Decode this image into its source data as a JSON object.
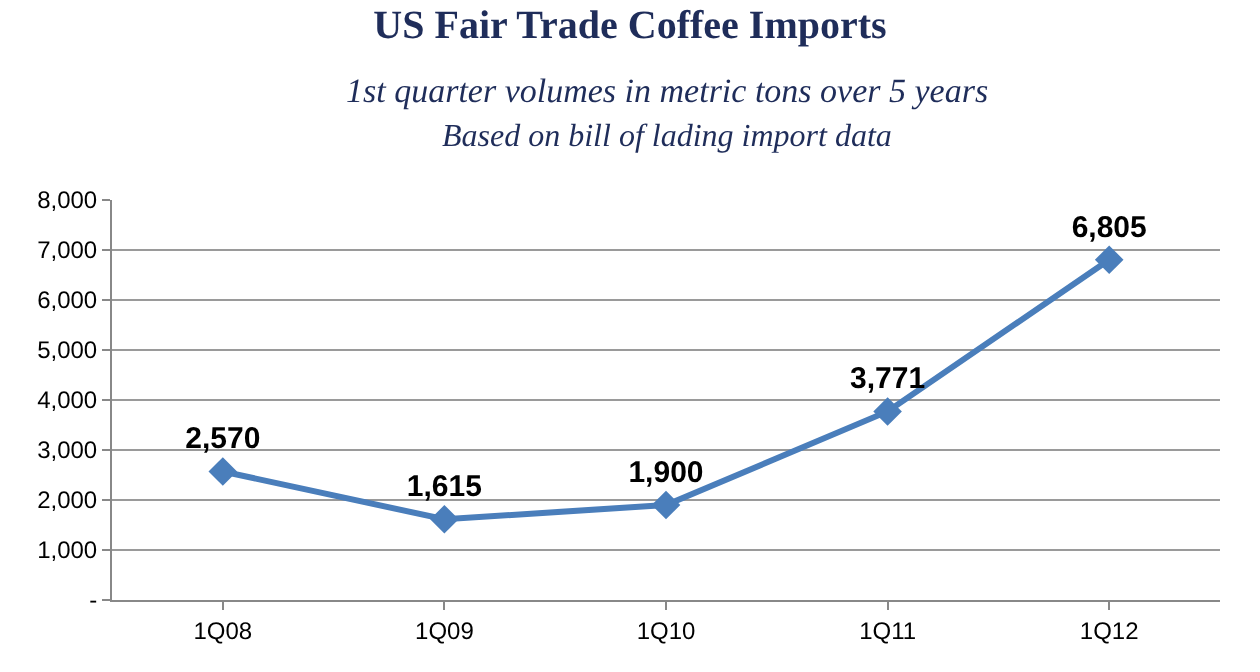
{
  "chart_data": {
    "type": "line",
    "title": "US Fair Trade Coffee Imports",
    "subtitle": "1st quarter volumes in metric tons over 5 years",
    "annotations": [
      "Based on bill of lading import data"
    ],
    "categories": [
      "1Q08",
      "1Q09",
      "1Q10",
      "1Q11",
      "1Q12"
    ],
    "series": [
      {
        "color": "#4a7ebb",
        "values": [
          2570,
          1615,
          1900,
          3771,
          6805
        ],
        "value_labels": [
          "2,570",
          "1,615",
          "1,900",
          "3,771",
          "6,805"
        ]
      }
    ],
    "ylim": [
      0,
      8000
    ],
    "yticks": [
      {
        "value": 0,
        "label": "-"
      },
      {
        "value": 1000,
        "label": "1,000"
      },
      {
        "value": 2000,
        "label": "2,000"
      },
      {
        "value": 3000,
        "label": "3,000"
      },
      {
        "value": 4000,
        "label": "4,000"
      },
      {
        "value": 5000,
        "label": "5,000"
      },
      {
        "value": 6000,
        "label": "6,000"
      },
      {
        "value": 7000,
        "label": "7,000"
      },
      {
        "value": 8000,
        "label": "8,000"
      }
    ],
    "grid": "y",
    "marker": "diamond",
    "line_style": "solid"
  }
}
